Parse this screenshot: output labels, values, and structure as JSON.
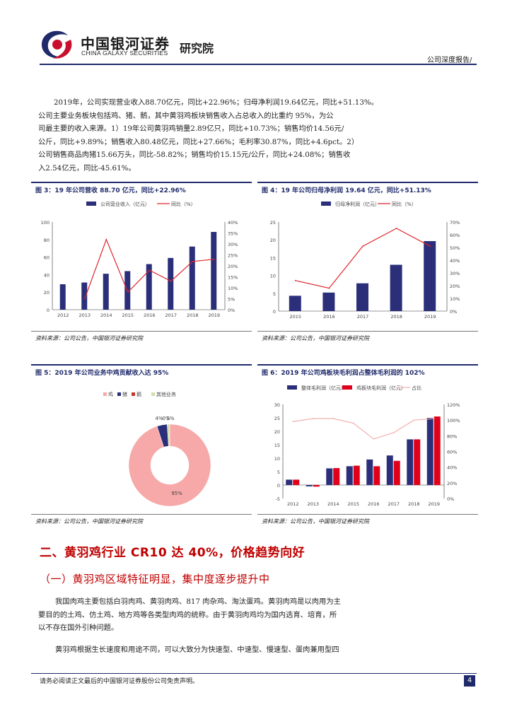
{
  "header": {
    "logo_cn": "中国银河证券",
    "logo_en": "CHINA GALAXY SECURITIES",
    "institute": "研究院",
    "report_type": "公司深度报告/"
  },
  "intro_paragraph": [
    "2019年，公司实现营业收入88.70亿元，同比+22.96%；归母净利润19.64亿元，同比+51.13%。",
    "公司主要业务板块包括鸡、猪、鹅，其中黄羽鸡板块销售收入占总收入的比重约 95%，为公",
    "司最主要的收入来源。1）19年公司黄羽鸡销量2.89亿只，同比+10.73%；销售均价14.56元/",
    "公斤，同比+9.89%；销售收入80.48亿元，同比+27.66%；毛利率30.87%，同比+4.6pct。2）",
    "公司销售商品肉猪15.66万头，同比-58.82%；销售均价15.15元/公斤，同比+24.08%；销售收",
    "入2.54亿元，同比-45.61%。"
  ],
  "figures": {
    "fig3": {
      "title": "图 3：19 年公司营收 88.70 亿元，同比+22.96%",
      "source": "资料来源：公司公告，中国银河证券研究院"
    },
    "fig4": {
      "title": "图 4：19 年公司归母净利润 19.64 亿元，同比+51.13%",
      "source": "资料来源：公司公告，中国银河证券研究院"
    },
    "fig5": {
      "title": "图 5：2019 年公司业务中鸡贡献收入达 95%",
      "source": "资料来源：公司公告，中国银河证券研究院"
    },
    "fig6": {
      "title": "图 6：2019 年公司鸡板块毛利润占整体毛利润的 102%",
      "source": "资料来源：公司公告，中国银河证券研究院"
    }
  },
  "chart_data": [
    {
      "id": "fig3",
      "type": "bar+line",
      "categories": [
        "2012",
        "2013",
        "2014",
        "2015",
        "2016",
        "2017",
        "2018",
        "2019"
      ],
      "series": [
        {
          "name": "公司营业收入（亿元）",
          "axis": "left",
          "type": "bar",
          "values": [
            29,
            31,
            41,
            44,
            52,
            59,
            72,
            88.7
          ]
        },
        {
          "name": "同比（%）",
          "axis": "right",
          "type": "line",
          "values": [
            null,
            5,
            32,
            8,
            18,
            13,
            22,
            23
          ]
        }
      ],
      "y_left": {
        "min": 0,
        "max": 100,
        "ticks": [
          "0",
          "20",
          "40",
          "60",
          "80",
          "100"
        ]
      },
      "y_right": {
        "min": 0,
        "max": 40,
        "ticks": [
          "0%",
          "5%",
          "10%",
          "15%",
          "20%",
          "25%",
          "30%",
          "35%",
          "40%"
        ]
      }
    },
    {
      "id": "fig4",
      "type": "bar+line",
      "categories": [
        "2015",
        "2016",
        "2017",
        "2018",
        "2019"
      ],
      "series": [
        {
          "name": "归母净利润（亿元）",
          "axis": "left",
          "type": "bar",
          "values": [
            4.3,
            5.2,
            7.8,
            13.0,
            19.64
          ]
        },
        {
          "name": "同比（%）",
          "axis": "right",
          "type": "line",
          "values": [
            24,
            18,
            51,
            65,
            51
          ]
        }
      ],
      "y_left": {
        "min": 0,
        "max": 25,
        "ticks": [
          "0",
          "5",
          "10",
          "15",
          "20",
          "25"
        ]
      },
      "y_right": {
        "min": 0,
        "max": 70,
        "ticks": [
          "0%",
          "10%",
          "20%",
          "30%",
          "40%",
          "50%",
          "60%",
          "70%"
        ]
      }
    },
    {
      "id": "fig5",
      "type": "pie",
      "labels": [
        "鸡",
        "猪",
        "鹅",
        "其他业务"
      ],
      "values": [
        95,
        4,
        0,
        1
      ],
      "data_labels": [
        "95%",
        "4%",
        "0%",
        "1%"
      ],
      "colors": [
        "#f7a8a8",
        "#2b2f7a",
        "#c0392b",
        "#cfe0a8"
      ]
    },
    {
      "id": "fig6",
      "type": "bar+line",
      "categories": [
        "2012",
        "2013",
        "2014",
        "2015",
        "2016",
        "2017",
        "2018",
        "2019"
      ],
      "series": [
        {
          "name": "整体毛利润（亿元）",
          "axis": "left",
          "type": "bar",
          "values": [
            2.0,
            -0.5,
            6.2,
            7.0,
            9.5,
            11.0,
            17.0,
            25.0
          ]
        },
        {
          "name": "鸡板块毛利润（亿元）",
          "axis": "left",
          "type": "bar",
          "values": [
            2.0,
            -0.6,
            6.3,
            7.2,
            7.0,
            9.0,
            17.0,
            25.5
          ]
        },
        {
          "name": "占比",
          "axis": "right",
          "type": "line",
          "values": [
            98,
            102,
            102,
            96,
            76,
            84,
            100,
            102
          ]
        }
      ],
      "y_left": {
        "min": -5,
        "max": 30,
        "ticks": [
          "-5",
          "0",
          "5",
          "10",
          "15",
          "20",
          "25",
          "30"
        ]
      },
      "y_right": {
        "min": 0,
        "max": 120,
        "ticks": [
          "0%",
          "20%",
          "40%",
          "60%",
          "80%",
          "100%",
          "120%"
        ]
      }
    }
  ],
  "section_heading": "二、黄羽鸡行业 CR10 达 40%，价格趋势向好",
  "subsection_heading": "（一）黄羽鸡区域特征明显，集中度逐步提升中",
  "body_paragraph_1": [
    "我国肉鸡主要包括白羽肉鸡、黄羽肉鸡、817 肉杂鸡、淘汰蛋鸡。黄羽肉鸡是以肉用为主",
    "要目的的土鸡、仿土鸡、地方鸡等各类型肉鸡的统称。由于黄羽肉鸡均为国内选育、培育，所",
    "以不存在国外引种问题。"
  ],
  "body_paragraph_2": "黄羽鸡根据生长速度和用途不同，可以大致分为快速型、中速型、慢速型、蛋肉兼用型四",
  "footer": {
    "disclaimer": "请务必阅读正文最后的中国银河证券股份公司免责声明。",
    "page_number": "4"
  }
}
